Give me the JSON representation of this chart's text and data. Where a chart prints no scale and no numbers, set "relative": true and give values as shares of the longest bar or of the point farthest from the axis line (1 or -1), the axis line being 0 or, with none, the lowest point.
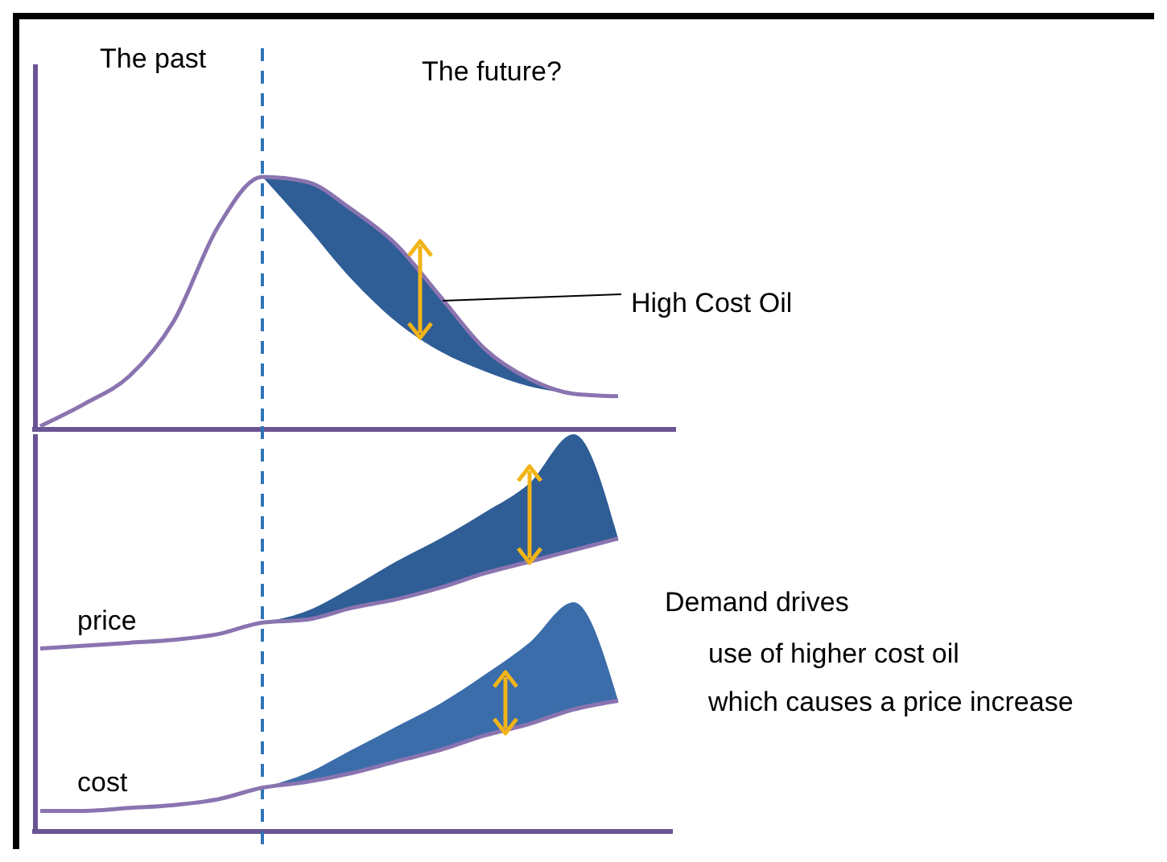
{
  "chart_data": [
    {
      "type": "line",
      "relative": true,
      "categories": [
        null,
        null,
        null,
        null,
        null,
        null,
        null,
        null,
        null,
        null,
        null,
        null,
        null,
        null
      ],
      "series": [
        {
          "color": "#8a74b0",
          "values": [
            0,
            0.09,
            0.2,
            0.42,
            0.8,
            1,
            0.98,
            0.87,
            0.73,
            0.52,
            0.31,
            0.19,
            0.13,
            0.12
          ],
          "lower": [
            null,
            null,
            null,
            null,
            null,
            1,
            0.8,
            0.59,
            0.42,
            0.3,
            0.22,
            0.16,
            0.13,
            0.12
          ],
          "upper": [
            null,
            null,
            null,
            null,
            null,
            1,
            0.98,
            0.87,
            0.73,
            0.52,
            0.31,
            0.19,
            0.13,
            0.12
          ]
        }
      ],
      "annotations": [
        "The past",
        "The future?",
        "High Cost Oil"
      ]
    },
    {
      "type": "line",
      "relative": true,
      "categories": [
        null,
        null,
        null,
        null,
        null,
        null,
        null,
        null,
        null,
        null,
        null,
        null,
        null,
        null
      ],
      "series": [
        {
          "name": "price",
          "color": "#8a74b0",
          "values": [
            0.62,
            0.63,
            0.64,
            0.65,
            0.67,
            0.71,
            0.72,
            0.76,
            0.79,
            0.83,
            0.88,
            0.92,
            0.96,
            1
          ],
          "lower": [
            null,
            null,
            null,
            null,
            null,
            0.71,
            0.72,
            0.76,
            0.79,
            0.83,
            0.88,
            0.92,
            0.96,
            1
          ],
          "upper": [
            null,
            null,
            null,
            null,
            null,
            0.71,
            0.75,
            0.83,
            0.92,
            1,
            1.09,
            1.19,
            1.36,
            1
          ]
        },
        {
          "name": "cost",
          "color": "#8a74b0",
          "values": [
            0.06,
            0.06,
            0.07,
            0.08,
            0.1,
            0.14,
            0.16,
            0.19,
            0.23,
            0.27,
            0.32,
            0.36,
            0.41,
            0.44
          ],
          "lower": [
            null,
            null,
            null,
            null,
            null,
            0.14,
            0.16,
            0.19,
            0.23,
            0.27,
            0.32,
            0.36,
            0.41,
            0.44
          ],
          "upper": [
            null,
            null,
            null,
            null,
            null,
            0.14,
            0.19,
            0.27,
            0.35,
            0.43,
            0.53,
            0.64,
            0.78,
            0.44
          ]
        }
      ],
      "annotations": [
        "Demand drives",
        "use of higher cost oil",
        "which causes a price increase"
      ]
    }
  ]
}
